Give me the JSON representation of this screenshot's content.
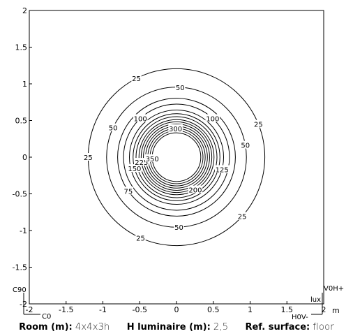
{
  "chart_data": {
    "type": "contour",
    "xlim": [
      -2,
      2
    ],
    "ylim": [
      -2,
      2
    ],
    "xticks": [
      "-2",
      "-1.5",
      "-1",
      "-0.5",
      "0",
      "0.5",
      "1",
      "1.5",
      "2"
    ],
    "yticks": [
      "2",
      "1.5",
      "1",
      "0.5",
      "0",
      "-0.5",
      "-1",
      "-1.5",
      "-2"
    ],
    "x_unit": "m",
    "z_unit": "lux",
    "corner_labels": {
      "c0": "C0",
      "c90": "C90",
      "v0h_plus": "V0H+",
      "h0v_minus": "H0V-"
    },
    "center": [
      0,
      0
    ],
    "levels": [
      {
        "value": 25,
        "radius": 1.2,
        "labels": [
          "25",
          "25",
          "25",
          "25",
          "25"
        ]
      },
      {
        "value": 50,
        "radius": 0.95,
        "labels": [
          "50",
          "50",
          "50",
          "50"
        ]
      },
      {
        "value": 75,
        "radius": 0.8,
        "labels": [
          "75"
        ]
      },
      {
        "value": 100,
        "radius": 0.72,
        "labels": [
          "100",
          "100"
        ]
      },
      {
        "value": 125,
        "radius": 0.64,
        "labels": [
          "125"
        ]
      },
      {
        "value": 150,
        "radius": 0.59,
        "labels": [
          "150"
        ]
      },
      {
        "value": 175,
        "radius": 0.55,
        "labels": []
      },
      {
        "value": 200,
        "radius": 0.51,
        "labels": [
          "200"
        ]
      },
      {
        "value": 225,
        "radius": 0.48,
        "labels": [
          "225"
        ]
      },
      {
        "value": 250,
        "radius": 0.45,
        "labels": []
      },
      {
        "value": 275,
        "radius": 0.42,
        "labels": []
      },
      {
        "value": 300,
        "radius": 0.39,
        "labels": [
          "300"
        ]
      },
      {
        "value": 325,
        "radius": 0.36,
        "labels": []
      },
      {
        "value": 350,
        "radius": 0.33,
        "labels": [
          "350"
        ]
      }
    ]
  },
  "footer": {
    "room_key": "Room (m):",
    "room_val": "4x4x3h",
    "lum_key": "H luminaire (m):",
    "lum_val": "2,5",
    "ref_key": "Ref. surface:",
    "ref_val": "floor"
  }
}
